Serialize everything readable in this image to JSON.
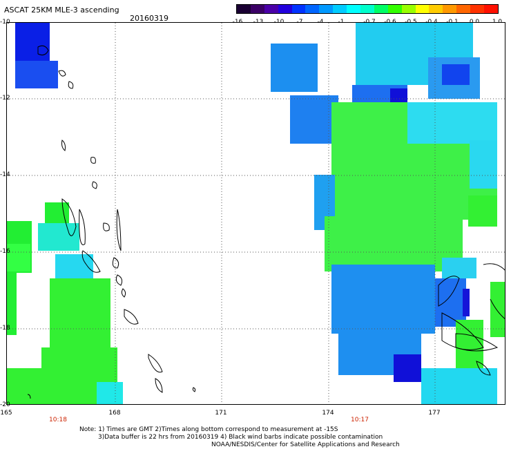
{
  "title": "ASCAT 25KM MLE-3 ascending",
  "date": "20160319",
  "colorbar": {
    "ticks": [
      "-16",
      "-13",
      "-10",
      "-7",
      "-4",
      "-1",
      "-0.7",
      "-0.6",
      "-0.5",
      "-0.4",
      "-0.1",
      "0.0",
      "1.0"
    ],
    "colors": [
      "#1a0033",
      "#3b0066",
      "#4b00a8",
      "#2200dd",
      "#0033ff",
      "#0066ff",
      "#0099ff",
      "#00ccff",
      "#00ffff",
      "#00ffcc",
      "#00ff66",
      "#33ff00",
      "#99ff00",
      "#ffff00",
      "#ffcc00",
      "#ff9900",
      "#ff6600",
      "#ff3300",
      "#ff1100"
    ]
  },
  "axes": {
    "lat_labels": [
      "-10",
      "-12",
      "-14",
      "-16",
      "-18",
      "-20"
    ],
    "lon_labels": [
      "165",
      "168",
      "171",
      "174",
      "177"
    ]
  },
  "pass_times": [
    "10:18",
    "10:17"
  ],
  "notes": [
    "Note: 1) Times are GMT 2)Times along bottom correspond to measurement at -15S",
    "3)Data buffer is 22 hrs from 20160319 4) Black wind barbs indicate possible contamination",
    "NOAA/NESDIS/Center for Satellite Applications and Research"
  ]
}
